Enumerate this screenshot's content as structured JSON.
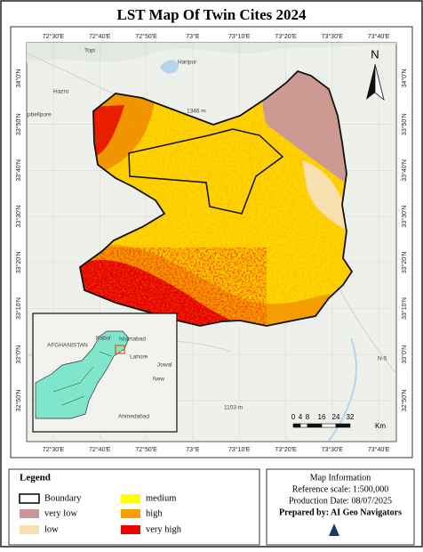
{
  "title": "LST  Map Of Twin Cites 2024",
  "map": {
    "top_labels": [
      "72°30'E",
      "72°40'E",
      "72°50'E",
      "73°E",
      "73°10'E",
      "73°20'E",
      "73°30'E",
      "73°40'E"
    ],
    "bottom_labels": [
      "72°30'E",
      "72°40'E",
      "72°50'E",
      "73°E",
      "73°10'E",
      "73°20'E",
      "73°30'E",
      "73°40'E"
    ],
    "left_labels": [
      "34°0'N",
      "33°50'N",
      "33°40'N",
      "33°30'N",
      "33°20'N",
      "33°10'N",
      "33°0'N",
      "32°50'N"
    ],
    "right_labels": [
      "34°0'N",
      "33°50'N",
      "33°40'N",
      "33°30'N",
      "33°20'N",
      "33°10'N",
      "33°0'N",
      "32°50'N"
    ],
    "places": [
      "Topi",
      "Haripur",
      "Hazro",
      "pbellpore",
      "1346 m",
      "1103 m",
      "N-5"
    ],
    "north": "N",
    "scale_bar": {
      "ticks": [
        "0",
        "4",
        "8",
        "16",
        "24",
        "32"
      ],
      "unit": "Km"
    },
    "inset": {
      "labels": [
        "AFGHANISTAN",
        "Kabul",
        "Islamabad",
        "Lahore",
        "Jowal",
        "New",
        "Ahmedabad"
      ]
    }
  },
  "legend": {
    "title": "Legend",
    "items": [
      "Boundary",
      "very low",
      "low",
      "medium",
      "high",
      "very high"
    ]
  },
  "map_information": {
    "title": "Map Information",
    "lines": [
      "Reference scale: 1:500,000",
      "Production Date: 08/07/2025",
      "Prepared by: AI Geo Navigators"
    ]
  }
}
